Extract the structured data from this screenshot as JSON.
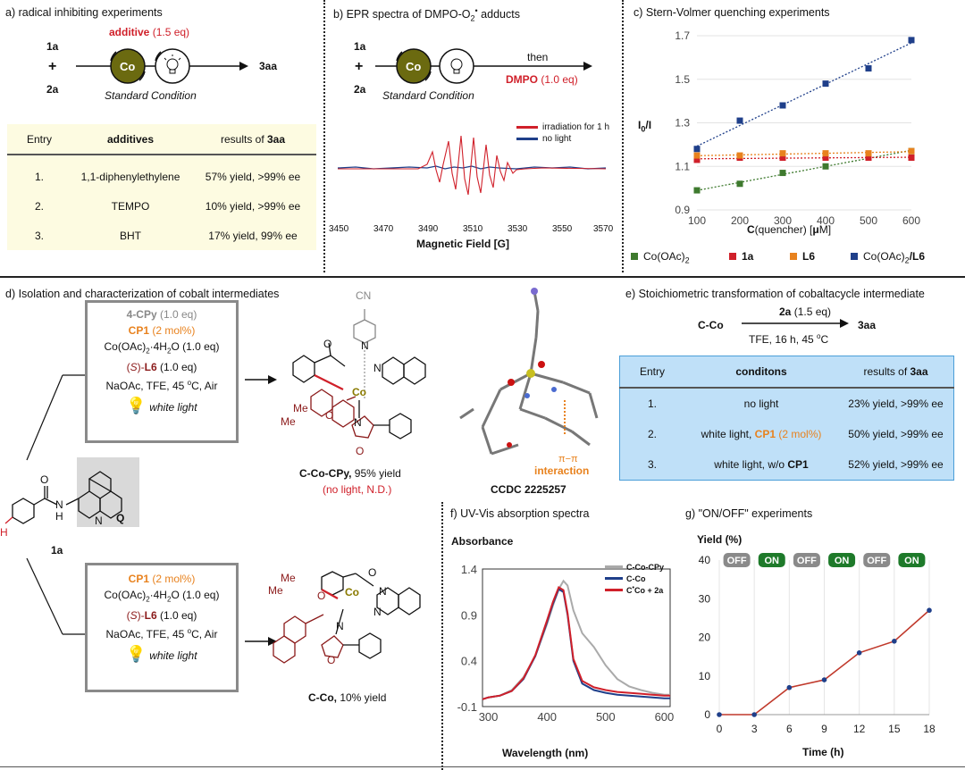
{
  "panel_a": {
    "title": "a) radical inhibiting experiments",
    "reactant1": "1a",
    "plus": "+",
    "reactant2": "2a",
    "additive_label": "additive",
    "additive_eq": " (1.5 eq)",
    "co_label": "Co",
    "condition": "Standard Condition",
    "product": "3aa",
    "table": {
      "headers": [
        "Entry",
        "additives",
        "results of ",
        "3aa"
      ],
      "rows": [
        [
          "1.",
          "1,1-diphenylethylene",
          "57% yield, >99% ee"
        ],
        [
          "2.",
          "TEMPO",
          "10% yield, >99% ee"
        ],
        [
          "3.",
          "BHT",
          "17% yield, 99% ee"
        ]
      ]
    }
  },
  "panel_b": {
    "title_pre": "b) EPR  spectra of DMPO-O",
    "title_sub": "2",
    "title_sup": "•",
    "title_post": " adducts",
    "reactant1": "1a",
    "plus": "+",
    "reactant2": "2a",
    "co_label": "Co",
    "then": "then",
    "dmpo": "DMPO",
    "dmpo_eq": " (1.0 eq)",
    "condition": "Standard Condition",
    "legend": [
      "irradiation for 1 h",
      "no light"
    ],
    "xticks": [
      "3450",
      "3470",
      "3490",
      "3510",
      "3530",
      "3550",
      "3570"
    ],
    "xlabel": "Magnetic Field [G]"
  },
  "panel_c": {
    "title": "c) Stern-Volmer quenching experiments",
    "ylabel_main": "I",
    "ylabel_sub": "0",
    "ylabel_post": "/I",
    "xlabel_main": "C",
    "xlabel_rest": "(quencher) [",
    "xlabel_mu": "μ",
    "xlabel_end": "M]",
    "legend": [
      "Co(OAc)",
      "1a",
      "L6",
      "Co(OAc)"
    ],
    "legend_sub": "2",
    "legend_suffix": "/L6"
  },
  "panel_d": {
    "title": "d) Isolation and characterization of cobalt intermediates",
    "box1": {
      "l1a": "4-CPy",
      "l1b": " (1.0 eq)",
      "l2a": "CP1",
      "l2b": " (2 mol%)",
      "l3": "Co(OAc)",
      "l3sub": "2",
      "l3b": "·4H",
      "l3sub2": "2",
      "l3c": "O (1.0 eq)",
      "l4a": "(",
      "l4b": "S",
      "l4c": ")-",
      "l4d": "L6",
      "l4e": " (1.0 eq)",
      "l5": "NaOAc, TFE, 45 ",
      "l5sup": "o",
      "l5b": "C, Air",
      "light": "white light"
    },
    "box2": {
      "l1a": "CP1",
      "l1b": " (2 mol%)",
      "l2": "Co(OAc)",
      "l2sub": "2",
      "l2b": "·4H",
      "l2sub2": "2",
      "l2c": "O (1.0 eq)",
      "l3a": "(",
      "l3b": "S",
      "l3c": ")-",
      "l3d": "L6",
      "l3e": " (1.0 eq)",
      "l4": "NaOAc, TFE, 45 ",
      "l4sup": "o",
      "l4b": "C, Air",
      "light": "white light"
    },
    "sm_label": "1a",
    "q_label": "Q",
    "prod1_name": "C-Co-CPy,",
    "prod1_yield": " 95% yield",
    "prod1_note": "(no light, N.D.)",
    "prod2_name": "C-Co,",
    "prod2_yield": " 10% yield",
    "ccdc": "CCDC 2225257",
    "pi": "π−π",
    "interaction": "interaction",
    "atoms": {
      "CN": "CN",
      "N": "N",
      "O": "O",
      "Co": "Co",
      "Me": "Me",
      "H": "H"
    }
  },
  "panel_e": {
    "title": "e) Stoichiometric transformation of cobaltacycle intermediate",
    "reactant": "C-Co",
    "reagent": "2a",
    "reagent_eq": " (1.5 eq)",
    "conditions_pre": "TFE, 16 h, 45 ",
    "conditions_sup": "o",
    "conditions_post": "C",
    "product": "3aa",
    "table": {
      "headers": [
        "Entry",
        "conditons",
        "results of ",
        "3aa"
      ],
      "rows": [
        {
          "entry": "1.",
          "cond": "no light",
          "result": "23% yield, >99% ee"
        },
        {
          "entry": "2.",
          "cond_pre": "white light, ",
          "cond_hl": "CP1",
          "cond_post": " (2 mol%)",
          "result": "50% yield, >99% ee"
        },
        {
          "entry": "3.",
          "cond_pre": "white light, w/o ",
          "cond_b": "CP1",
          "result": "52% yield, >99% ee"
        }
      ]
    }
  },
  "panel_f": {
    "title": "f) UV-Vis absorption spectra",
    "ylabel": "Absorbance",
    "xlabel": "Wavelength (nm)",
    "legend": [
      "C-Co-CPy",
      "C-Co",
      "C",
      "Co + 2a"
    ],
    "legend_sup": "•",
    "yticks": [
      "1.4",
      "0.9",
      "0.4",
      "-0.1"
    ],
    "xticks": [
      "300",
      "400",
      "500",
      "600"
    ]
  },
  "panel_g": {
    "title": "g) \"ON/OFF\" experiments",
    "ylabel": "Yield (%)",
    "xlabel": "Time (h)",
    "badges": [
      "OFF",
      "ON",
      "OFF",
      "ON",
      "OFF",
      "ON"
    ]
  },
  "colors": {
    "red": "#d0202a",
    "orange": "#e8821e",
    "navy": "#1f3f8a",
    "green": "#3e7a2e",
    "olive": "#6b6a10",
    "gray": "#8a8a8a",
    "brown": "#8b1a1a",
    "blue_tbl": "#bfe0f8",
    "yellow_tbl": "#fdfbe1"
  },
  "chart_data": [
    {
      "type": "scatter",
      "title": "c) Stern-Volmer quenching experiments",
      "xlabel": "C(quencher) [μM]",
      "ylabel": "I0/I",
      "xlim": [
        100,
        600
      ],
      "ylim": [
        0.9,
        1.7
      ],
      "x": [
        100,
        200,
        300,
        400,
        500,
        600
      ],
      "xticks": [
        100,
        200,
        300,
        400,
        500,
        600
      ],
      "yticks": [
        0.9,
        1.1,
        1.3,
        1.5,
        1.7
      ],
      "series": [
        {
          "name": "Co(OAc)2",
          "color": "#3e7a2e",
          "values": [
            0.99,
            1.02,
            1.07,
            1.1,
            1.14,
            1.17
          ]
        },
        {
          "name": "1a",
          "color": "#d0202a",
          "values": [
            1.13,
            1.14,
            1.14,
            1.14,
            1.14,
            1.14
          ]
        },
        {
          "name": "L6",
          "color": "#e8821e",
          "values": [
            1.15,
            1.15,
            1.16,
            1.16,
            1.16,
            1.17
          ]
        },
        {
          "name": "Co(OAc)2/L6",
          "color": "#1f3f8a",
          "values": [
            1.18,
            1.31,
            1.38,
            1.48,
            1.55,
            1.68
          ]
        }
      ]
    },
    {
      "type": "line",
      "title": "g) \"ON/OFF\" experiments",
      "xlabel": "Time (h)",
      "ylabel": "Yield (%)",
      "xlim": [
        0,
        18
      ],
      "ylim": [
        0,
        40
      ],
      "x": [
        0,
        3,
        6,
        9,
        12,
        15,
        18
      ],
      "xticks": [
        0,
        3,
        6,
        9,
        12,
        15,
        18
      ],
      "yticks": [
        0,
        10,
        20,
        30,
        40
      ],
      "series": [
        {
          "name": "Yield",
          "color": "#c0392b",
          "values": [
            0,
            0,
            7,
            9,
            16,
            19,
            27
          ]
        }
      ]
    },
    {
      "type": "line",
      "title": "f) UV-Vis absorption spectra",
      "xlabel": "Wavelength (nm)",
      "ylabel": "Absorbance",
      "xlim": [
        290,
        610
      ],
      "ylim": [
        -0.1,
        1.4
      ],
      "x": [
        290,
        300,
        320,
        340,
        360,
        380,
        400,
        410,
        420,
        428,
        435,
        445,
        460,
        480,
        500,
        520,
        540,
        560,
        580,
        600,
        610
      ],
      "series": [
        {
          "name": "C-Co-CPy",
          "color": "#aaaaaa",
          "values": [
            -0.02,
            0.0,
            0.02,
            0.08,
            0.22,
            0.45,
            0.8,
            1.0,
            1.18,
            1.27,
            1.22,
            0.95,
            0.7,
            0.55,
            0.35,
            0.2,
            0.12,
            0.08,
            0.05,
            0.03,
            0.03
          ]
        },
        {
          "name": "C-Co",
          "color": "#1f3f8a",
          "values": [
            -0.02,
            0.0,
            0.02,
            0.07,
            0.2,
            0.45,
            0.82,
            1.02,
            1.18,
            1.15,
            0.9,
            0.4,
            0.15,
            0.08,
            0.05,
            0.03,
            0.02,
            0.01,
            0.0,
            -0.01,
            -0.01
          ]
        },
        {
          "name": "C•Co + 2a",
          "color": "#d0202a",
          "values": [
            -0.02,
            0.0,
            0.02,
            0.07,
            0.21,
            0.46,
            0.84,
            1.04,
            1.2,
            1.17,
            0.92,
            0.42,
            0.18,
            0.11,
            0.08,
            0.06,
            0.05,
            0.04,
            0.03,
            0.02,
            0.02
          ]
        }
      ]
    },
    {
      "type": "line",
      "title": "b) EPR spectra of DMPO-O2• adducts",
      "xlabel": "Magnetic Field [G]",
      "xlim": [
        3450,
        3570
      ],
      "xticks": [
        3450,
        3470,
        3490,
        3510,
        3530,
        3550,
        3570
      ],
      "series": [
        {
          "name": "irradiation for 1 h",
          "color": "#d0202a",
          "values": [
            0,
            0,
            0.05,
            0.6,
            -0.3,
            1.0,
            -0.9,
            1.1,
            -1.0,
            0.8,
            -0.8,
            0.6,
            -0.5,
            0.3,
            -0.2,
            0,
            0
          ]
        },
        {
          "name": "no light",
          "color": "#1f3f8a",
          "values": [
            0,
            0.02,
            -0.02,
            0.01,
            -0.01,
            0.02,
            0,
            0,
            -0.01,
            0.02,
            0,
            0,
            0.01,
            -0.02,
            0,
            0.01,
            0
          ]
        }
      ]
    }
  ]
}
